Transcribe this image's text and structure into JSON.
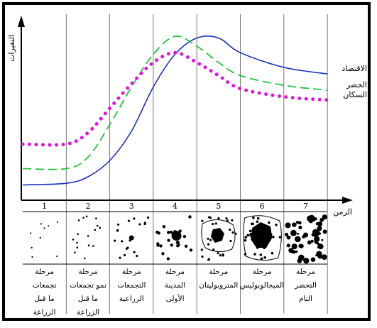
{
  "chart_data": {
    "type": "line",
    "y_axis_label": "التغيرات",
    "x_axis_label": "الزمن",
    "series": [
      {
        "name": "الاقتصاد",
        "style": "solid",
        "color": "#1a2fb8",
        "points": [
          [
            0,
            0.05
          ],
          [
            1,
            0.06
          ],
          [
            1.5,
            0.1
          ],
          [
            2,
            0.2
          ],
          [
            2.5,
            0.38
          ],
          [
            3,
            0.65
          ],
          [
            3.5,
            0.85
          ],
          [
            4,
            0.95
          ],
          [
            4.5,
            0.95
          ],
          [
            5,
            0.86
          ],
          [
            6,
            0.77
          ],
          [
            7,
            0.73
          ]
        ]
      },
      {
        "name": "الحضر",
        "style": "dashed",
        "color": "#22c23c",
        "points": [
          [
            0,
            0.15
          ],
          [
            1,
            0.15
          ],
          [
            1.5,
            0.22
          ],
          [
            2,
            0.42
          ],
          [
            2.5,
            0.65
          ],
          [
            3,
            0.85
          ],
          [
            3.5,
            0.96
          ],
          [
            4,
            0.9
          ],
          [
            4.5,
            0.8
          ],
          [
            5,
            0.72
          ],
          [
            6,
            0.66
          ],
          [
            7,
            0.63
          ]
        ]
      },
      {
        "name": "السكان",
        "style": "dotted",
        "color": "#e014d8",
        "points": [
          [
            0,
            0.3
          ],
          [
            1,
            0.3
          ],
          [
            1.5,
            0.37
          ],
          [
            2,
            0.52
          ],
          [
            2.5,
            0.67
          ],
          [
            3,
            0.8
          ],
          [
            3.5,
            0.86
          ],
          [
            4,
            0.8
          ],
          [
            4.5,
            0.72
          ],
          [
            5,
            0.64
          ],
          [
            6,
            0.59
          ],
          [
            7,
            0.57
          ]
        ]
      }
    ]
  },
  "stages": [
    {
      "number": "1",
      "lines": [
        "مرحلة",
        "تجمعات",
        "ما قبل",
        "الزراعة"
      ],
      "pattern": "sparse"
    },
    {
      "number": "2",
      "lines": [
        "مرحلة",
        "نمو تجمعات",
        "ما قبل",
        "الزراعة"
      ],
      "pattern": "sparse-plus"
    },
    {
      "number": "3",
      "lines": [
        "مرحلة",
        "التجمعات",
        "الزراعية"
      ],
      "pattern": "agri"
    },
    {
      "number": "4",
      "lines": [
        "مرحلة",
        "المدينة",
        "الأولى"
      ],
      "pattern": "city"
    },
    {
      "number": "5",
      "lines": [
        "مرحلة",
        "المتروبوليتان"
      ],
      "pattern": "metro"
    },
    {
      "number": "6",
      "lines": [
        "مرحلة",
        "الميجالوبوليس"
      ],
      "pattern": "megalo"
    },
    {
      "number": "7",
      "lines": [
        "مرحلة",
        "التحضر",
        "التام"
      ],
      "pattern": "full"
    }
  ]
}
